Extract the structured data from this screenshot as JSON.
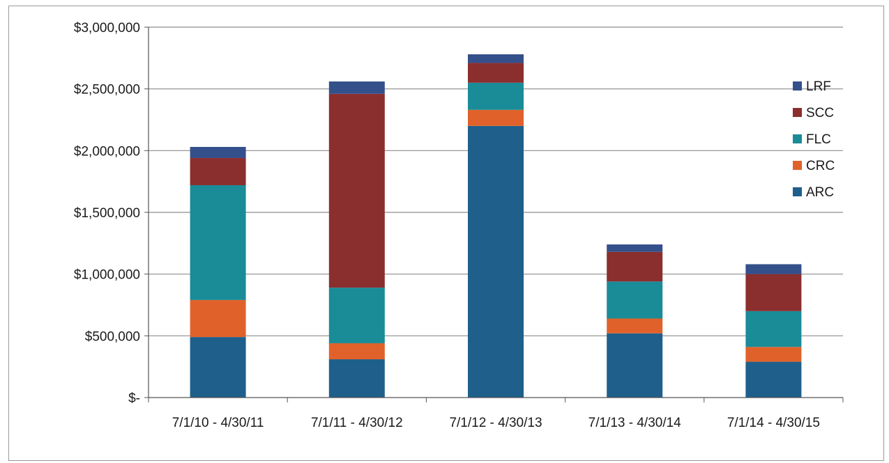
{
  "chart_data": {
    "type": "bar",
    "stacked": true,
    "title": "",
    "xlabel": "",
    "ylabel": "",
    "categories": [
      "7/1/10 - 4/30/11",
      "7/1/11 - 4/30/12",
      "7/1/12 - 4/30/13",
      "7/1/13 - 4/30/14",
      "7/1/14 - 4/30/15"
    ],
    "series": [
      {
        "name": "ARC",
        "color": "#1f5f8b",
        "values": [
          490000,
          310000,
          2200000,
          520000,
          290000
        ]
      },
      {
        "name": "CRC",
        "color": "#e0622a",
        "values": [
          300000,
          130000,
          130000,
          120000,
          120000
        ]
      },
      {
        "name": "FLC",
        "color": "#1a8c98",
        "values": [
          930000,
          450000,
          220000,
          300000,
          290000
        ]
      },
      {
        "name": "SCC",
        "color": "#8b2e2e",
        "values": [
          220000,
          1570000,
          160000,
          240000,
          300000
        ]
      },
      {
        "name": "LRF",
        "color": "#34508a",
        "values": [
          90000,
          100000,
          70000,
          60000,
          80000
        ]
      }
    ],
    "ylim": [
      0,
      3000000
    ],
    "yticks": [
      0,
      500000,
      1000000,
      1500000,
      2000000,
      2500000,
      3000000
    ],
    "ytick_labels": [
      "$-",
      "$500,000",
      "$1,000,000",
      "$1,500,000",
      "$2,000,000",
      "$2,500,000",
      "$3,000,000"
    ],
    "grid": true,
    "legend_position": "right",
    "legend_order": [
      "LRF",
      "SCC",
      "FLC",
      "CRC",
      "ARC"
    ]
  }
}
